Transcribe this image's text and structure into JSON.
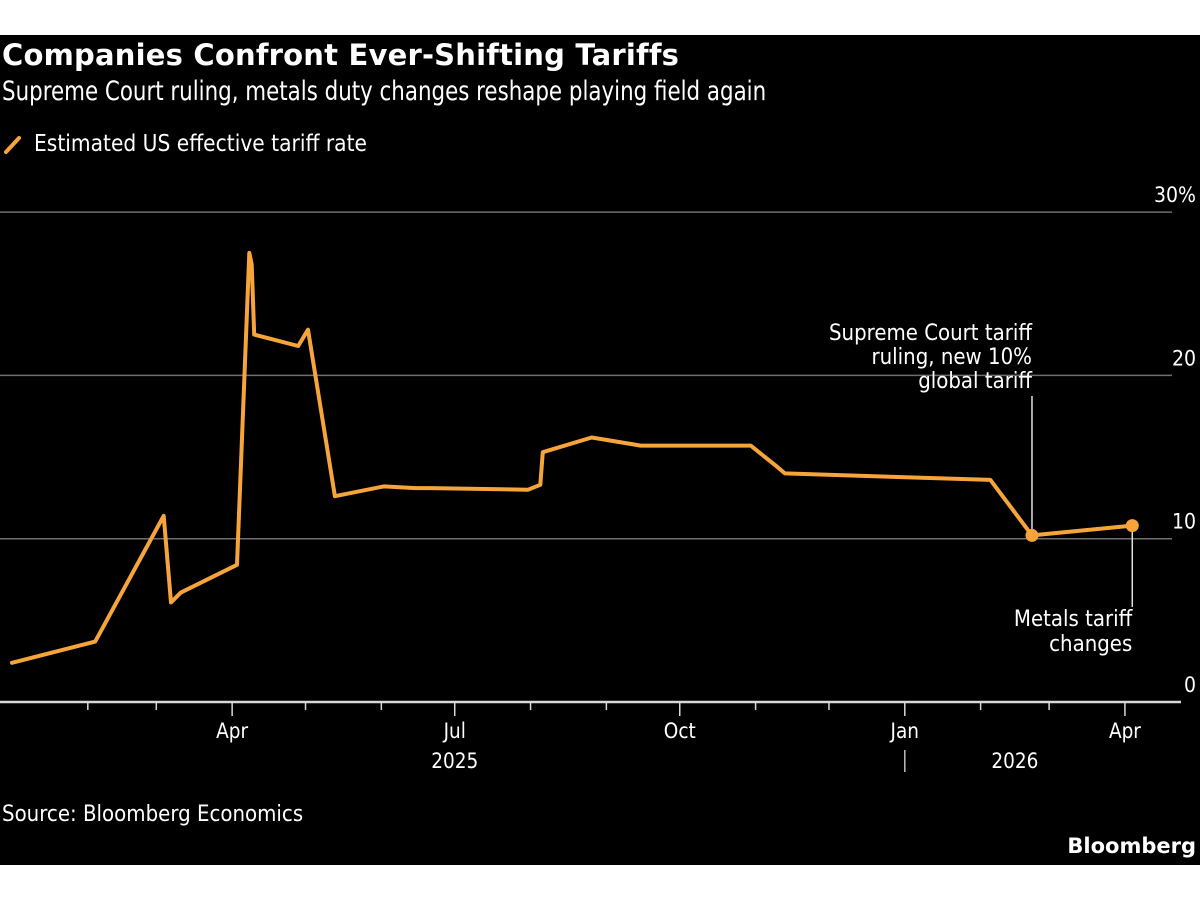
{
  "title": "Companies Confront Ever-Shifting Tariffs",
  "subtitle": "Supreme Court ruling, metals duty changes reshape playing field again",
  "source": "Source: Bloomberg Economics",
  "logo": "Bloomberg",
  "colors": {
    "background": "#000000",
    "series": "#F7A43A",
    "grid": "#6e6e6e",
    "text": "#ffffff"
  },
  "chart_data": {
    "type": "line",
    "title": "Companies Confront Ever-Shifting Tariffs",
    "subtitle": "Supreme Court ruling, metals duty changes reshape playing field again",
    "legend_position": "top-left",
    "grid": true,
    "y_axis": {
      "position": "right",
      "ylim": [
        0,
        30
      ],
      "ticks": [
        0,
        10,
        20,
        30
      ],
      "tick_labels": [
        "0",
        "10",
        "20",
        "30%"
      ]
    },
    "x_axis": {
      "xlim": [
        "2025-01-01",
        "2026-04-20"
      ],
      "month_ticks": [
        "2025-02-01",
        "2025-03-01",
        "2025-04-01",
        "2025-05-01",
        "2025-06-01",
        "2025-07-01",
        "2025-08-01",
        "2025-09-01",
        "2025-10-01",
        "2025-11-01",
        "2025-12-01",
        "2026-01-01",
        "2026-02-01",
        "2026-03-01",
        "2026-04-01"
      ],
      "labels": [
        {
          "date": "2025-04-01",
          "text": "Apr"
        },
        {
          "date": "2025-07-01",
          "text": "Jul"
        },
        {
          "date": "2025-10-01",
          "text": "Oct"
        },
        {
          "date": "2026-01-01",
          "text": "Jan"
        },
        {
          "date": "2026-04-01",
          "text": "Apr"
        }
      ],
      "year_labels": [
        {
          "date": "2025-07-01",
          "text": "2025"
        },
        {
          "date": "2026-02-15",
          "text": "2026"
        }
      ],
      "year_divider": "2026-01-01"
    },
    "series": [
      {
        "name": "Estimated US effective tariff rate",
        "points": [
          [
            "2025-01-01",
            2.4
          ],
          [
            "2025-02-04",
            3.7
          ],
          [
            "2025-03-04",
            11.4
          ],
          [
            "2025-03-07",
            6.1
          ],
          [
            "2025-03-11",
            6.7
          ],
          [
            "2025-04-03",
            8.4
          ],
          [
            "2025-04-08",
            27.5
          ],
          [
            "2025-04-09",
            26.8
          ],
          [
            "2025-04-10",
            22.5
          ],
          [
            "2025-04-28",
            21.8
          ],
          [
            "2025-05-02",
            22.8
          ],
          [
            "2025-05-13",
            12.6
          ],
          [
            "2025-06-02",
            13.2
          ],
          [
            "2025-06-15",
            13.1
          ],
          [
            "2025-06-21",
            13.1
          ],
          [
            "2025-07-31",
            13.0
          ],
          [
            "2025-08-05",
            13.3
          ],
          [
            "2025-08-06",
            15.3
          ],
          [
            "2025-08-26",
            16.2
          ],
          [
            "2025-09-15",
            15.7
          ],
          [
            "2025-10-13",
            15.7
          ],
          [
            "2025-10-30",
            15.7
          ],
          [
            "2025-11-09",
            14.5
          ],
          [
            "2025-11-13",
            14.0
          ],
          [
            "2026-02-05",
            13.6
          ],
          [
            "2026-02-22",
            10.2
          ],
          [
            "2026-04-04",
            10.8
          ]
        ]
      }
    ],
    "annotations": [
      {
        "date": "2026-02-22",
        "value": 10.2,
        "lines": [
          "Supreme Court tariff",
          "ruling, new 10%",
          "global tariff"
        ],
        "position": "above"
      },
      {
        "date": "2026-04-04",
        "value": 10.8,
        "lines": [
          "Metals tariff",
          "changes"
        ],
        "position": "below"
      }
    ]
  }
}
